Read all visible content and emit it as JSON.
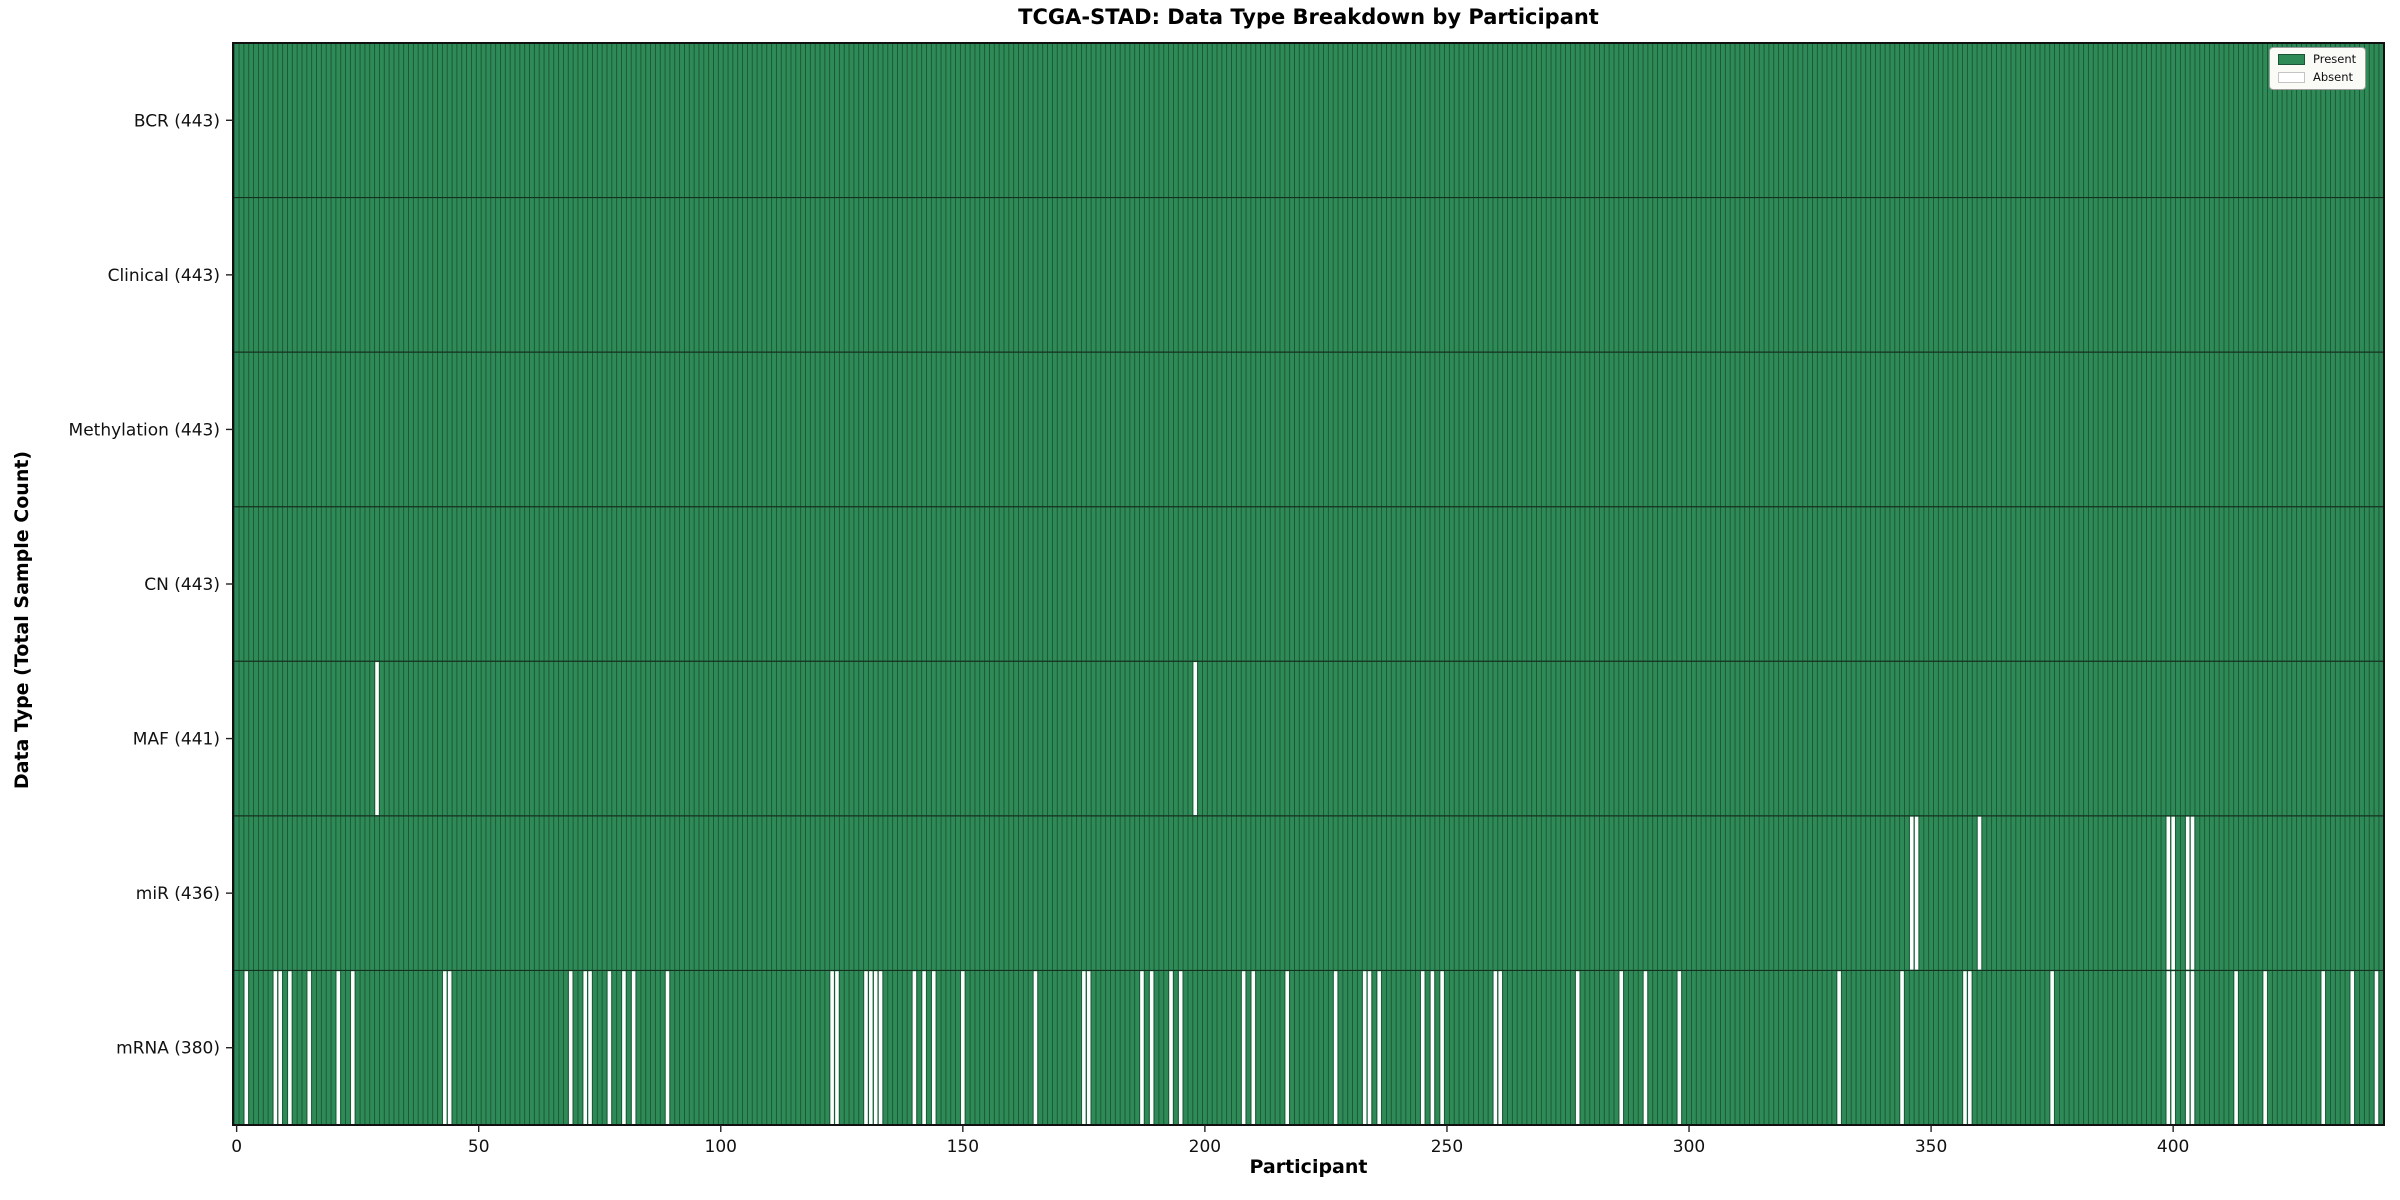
{
  "title": "TCGA-STAD: Data Type Breakdown by Participant",
  "xlabel": "Participant",
  "ylabel": "Data Type (Total Sample Count)",
  "legend": {
    "present_label": "Present",
    "absent_label": "Absent"
  },
  "colors": {
    "present": "#2e8b57",
    "absent": "#ffffff",
    "bar_edge": "#1b5434",
    "row_boundary": "#16301f",
    "plot_border": "#111111",
    "legend_bg": "#fafaf6",
    "legend_border": "#9c9c9c"
  },
  "chart_data": {
    "type": "heatmap",
    "title": "TCGA-STAD: Data Type Breakdown by Participant",
    "xlabel": "Participant",
    "ylabel": "Data Type (Total Sample Count)",
    "x_ticks": [
      0,
      50,
      100,
      150,
      200,
      250,
      300,
      350,
      400
    ],
    "n_participants": 443,
    "xlim": [
      -0.5,
      444
    ],
    "grid": false,
    "legend_position": "upper right",
    "legend": [
      {
        "label": "Present",
        "color": "#2e8b57"
      },
      {
        "label": "Absent",
        "color": "#ffffff"
      }
    ],
    "rows": [
      {
        "label": "BCR (443)",
        "data_type": "BCR",
        "total": 443,
        "absent": []
      },
      {
        "label": "Clinical (443)",
        "data_type": "Clinical",
        "total": 443,
        "absent": []
      },
      {
        "label": "Methylation (443)",
        "data_type": "Methylation",
        "total": 443,
        "absent": []
      },
      {
        "label": "CN (443)",
        "data_type": "CN",
        "total": 443,
        "absent": []
      },
      {
        "label": "MAF (441)",
        "data_type": "MAF",
        "total": 441,
        "absent": [
          29,
          198
        ]
      },
      {
        "label": "miR (436)",
        "data_type": "miR",
        "total": 436,
        "absent": [
          346,
          347,
          360,
          399,
          400,
          403,
          404
        ]
      },
      {
        "label": "mRNA (380)",
        "data_type": "mRNA",
        "total": 380,
        "absent": [
          2,
          8,
          9,
          11,
          15,
          21,
          24,
          43,
          44,
          69,
          72,
          73,
          77,
          80,
          82,
          89,
          123,
          124,
          130,
          131,
          132,
          133,
          140,
          142,
          144,
          150,
          165,
          175,
          176,
          187,
          189,
          193,
          195,
          208,
          210,
          217,
          227,
          233,
          234,
          236,
          245,
          247,
          249,
          260,
          261,
          277,
          286,
          291,
          298,
          331,
          344,
          357,
          358,
          375,
          399,
          400,
          403,
          404,
          413,
          419,
          431,
          437,
          442
        ]
      }
    ]
  }
}
